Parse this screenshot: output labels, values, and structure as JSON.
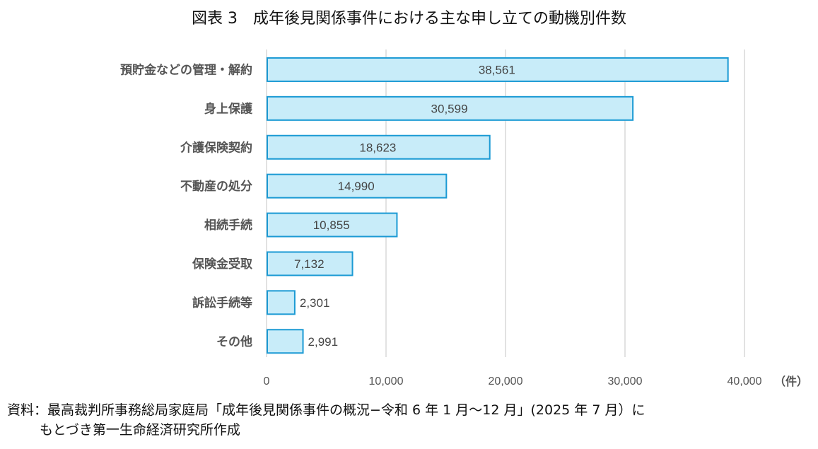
{
  "title": "図表 3　成年後見関係事件における主な申し立ての動機別件数",
  "chart_data": {
    "type": "bar",
    "orientation": "horizontal",
    "categories": [
      "預貯金などの管理・解約",
      "身上保護",
      "介護保険契約",
      "不動産の処分",
      "相続手続",
      "保険金受取",
      "訴訟手続等",
      "その他"
    ],
    "values": [
      38561,
      30599,
      18623,
      14990,
      10855,
      7132,
      2301,
      2991
    ],
    "data_labels": [
      "38,561",
      "30,599",
      "18,623",
      "14,990",
      "10,855",
      "7,132",
      "2,301",
      "2,991"
    ],
    "xlim": [
      0,
      40000
    ],
    "x_ticks": [
      0,
      10000,
      20000,
      30000,
      40000
    ],
    "x_tick_labels": [
      "0",
      "10,000",
      "20,000",
      "30,000",
      "40,000"
    ],
    "x_unit": "（件）",
    "grid": "vertical",
    "colors": {
      "bar_fill": "#c8ecf9",
      "bar_stroke": "#1b9ad4",
      "grid": "#d9d9d9"
    }
  },
  "source": {
    "line1": "資料：最高裁判所事務総局家庭局「成年後見関係事件の概況−令和 6 年 1 月〜12 月」(2025 年 7 月）に",
    "line2": "もとづき第一生命経済研究所作成"
  }
}
